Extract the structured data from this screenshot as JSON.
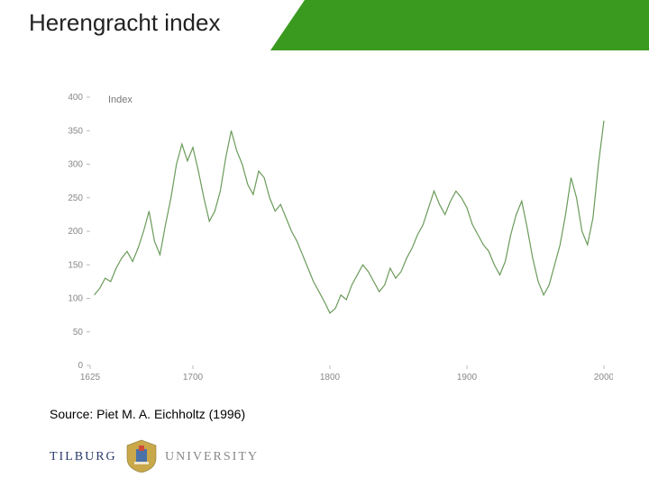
{
  "header": {
    "title": "Herengracht index",
    "bg_color": "#3a9a1f",
    "title_color": "#222222",
    "title_fontsize": 26
  },
  "chart": {
    "type": "line",
    "series_label": "Index",
    "line_color": "#6a9b5a",
    "line_width": 1.2,
    "background_color": "#ffffff",
    "axis_color": "#bbbbbb",
    "tick_label_color": "#888888",
    "tick_label_fontsize": 10,
    "xlim": [
      1625,
      2000
    ],
    "ylim": [
      0,
      400
    ],
    "ytick_step": 50,
    "yticks": [
      0,
      50,
      100,
      150,
      200,
      250,
      300,
      350,
      400
    ],
    "xticks": [
      1625,
      1700,
      1800,
      1900,
      2000
    ],
    "data": {
      "x": [
        1628,
        1632,
        1636,
        1640,
        1644,
        1648,
        1652,
        1656,
        1660,
        1664,
        1668,
        1672,
        1676,
        1680,
        1684,
        1688,
        1692,
        1696,
        1700,
        1704,
        1708,
        1712,
        1716,
        1720,
        1724,
        1728,
        1732,
        1736,
        1740,
        1744,
        1748,
        1752,
        1756,
        1760,
        1764,
        1768,
        1772,
        1776,
        1780,
        1784,
        1788,
        1792,
        1796,
        1800,
        1804,
        1808,
        1812,
        1816,
        1820,
        1824,
        1828,
        1832,
        1836,
        1840,
        1844,
        1848,
        1852,
        1856,
        1860,
        1864,
        1868,
        1872,
        1876,
        1880,
        1884,
        1888,
        1892,
        1896,
        1900,
        1904,
        1908,
        1912,
        1916,
        1920,
        1924,
        1928,
        1932,
        1936,
        1940,
        1944,
        1948,
        1952,
        1956,
        1960,
        1964,
        1968,
        1972,
        1976,
        1980,
        1984,
        1988,
        1992,
        1996,
        2000
      ],
      "y": [
        105,
        115,
        130,
        125,
        145,
        160,
        170,
        155,
        175,
        200,
        230,
        185,
        165,
        210,
        250,
        300,
        330,
        305,
        325,
        290,
        250,
        215,
        230,
        260,
        310,
        350,
        320,
        300,
        270,
        255,
        290,
        280,
        250,
        230,
        240,
        220,
        200,
        185,
        165,
        145,
        125,
        110,
        95,
        78,
        85,
        105,
        98,
        120,
        135,
        150,
        140,
        125,
        110,
        120,
        145,
        130,
        140,
        160,
        175,
        195,
        210,
        235,
        260,
        240,
        225,
        245,
        260,
        250,
        235,
        210,
        195,
        180,
        170,
        150,
        135,
        155,
        195,
        225,
        245,
        205,
        160,
        125,
        105,
        120,
        150,
        180,
        225,
        280,
        250,
        200,
        180,
        220,
        300,
        365
      ]
    }
  },
  "source": "Source: Piet M. A. Eichholtz (1996)",
  "logo": {
    "text_left": "TILBURG",
    "text_right": "UNIVERSITY",
    "brand_color": "#2a3a6a",
    "secondary_color": "#888888",
    "crest_fill": "#c9a84a",
    "crest_accent": "#4a72a8"
  }
}
